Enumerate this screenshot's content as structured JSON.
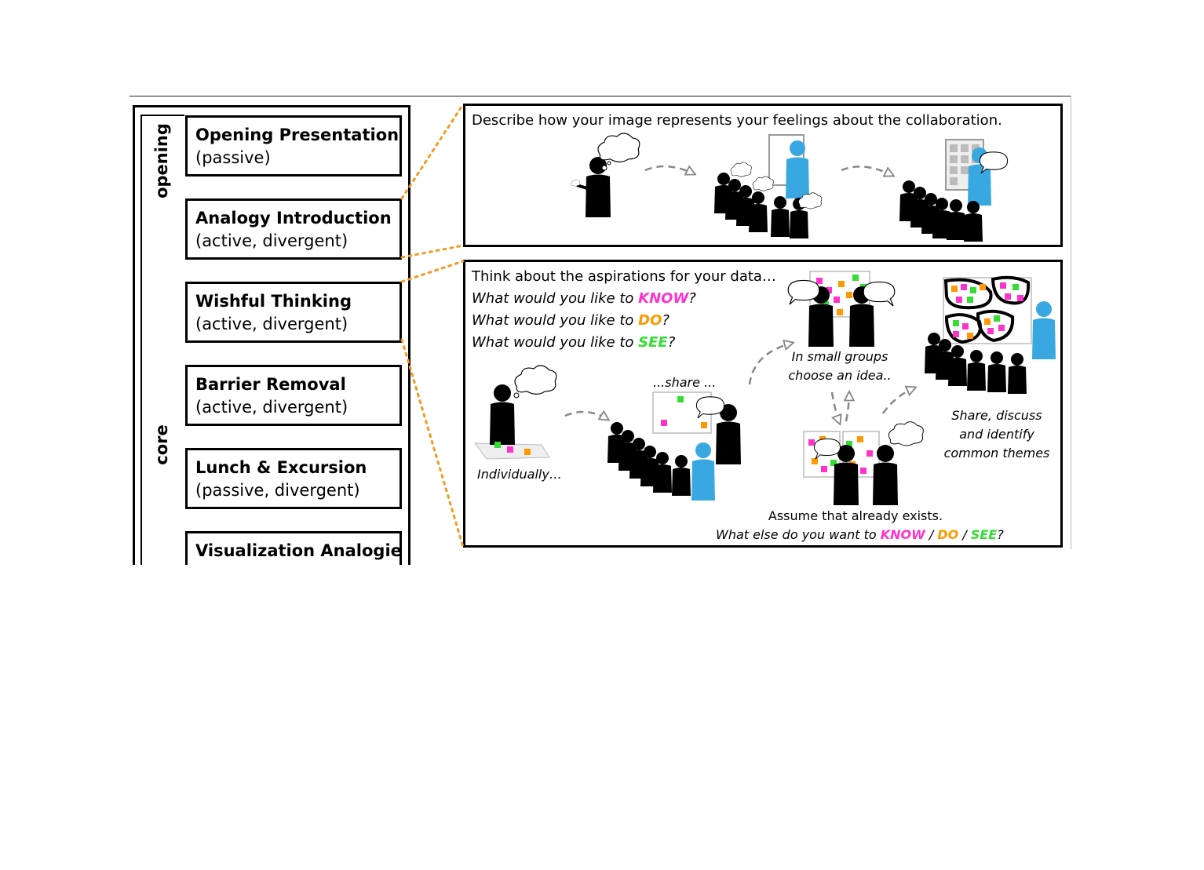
{
  "phases": {
    "opening": "opening",
    "core": "core"
  },
  "steps": [
    {
      "title": "Opening Presentation",
      "subtitle": "(passive)"
    },
    {
      "title": "Analogy Introduction",
      "subtitle": "(active, divergent)"
    },
    {
      "title": "Wishful Thinking",
      "subtitle": "(active, divergent)"
    },
    {
      "title": "Barrier Removal",
      "subtitle": "(active, divergent)"
    },
    {
      "title": "Lunch & Excursion",
      "subtitle": "(passive, divergent)"
    },
    {
      "title": "Visualization Analogies",
      "subtitle": ""
    }
  ],
  "panel_analogy": {
    "prompt": "Describe how your image represents your feelings about the collaboration."
  },
  "panel_wishful": {
    "prompt": "Think about the aspirations for your data…",
    "q_prefix": "What would you like to ",
    "q_know": "KNOW",
    "q_do": "DO",
    "q_see": "SEE",
    "q_suffix": "?",
    "label_individually": "Individually…",
    "label_share": "...share ...",
    "label_groups_1": "In small groups",
    "label_groups_2": "choose an idea..",
    "label_themes_1": "Share, discuss",
    "label_themes_2": "and identify",
    "label_themes_3": "common themes",
    "assume": "Assume that already exists.",
    "else_prefix": "What else do you want to ",
    "else_know": "KNOW",
    "sep": " / ",
    "else_do": "DO",
    "else_see": "SEE",
    "else_suffix": "?"
  },
  "colors": {
    "know": "#ff33cc",
    "do": "#ff9900",
    "see": "#33dd33",
    "presenter": "#3aa8e0",
    "connector": "#f39a1e"
  }
}
